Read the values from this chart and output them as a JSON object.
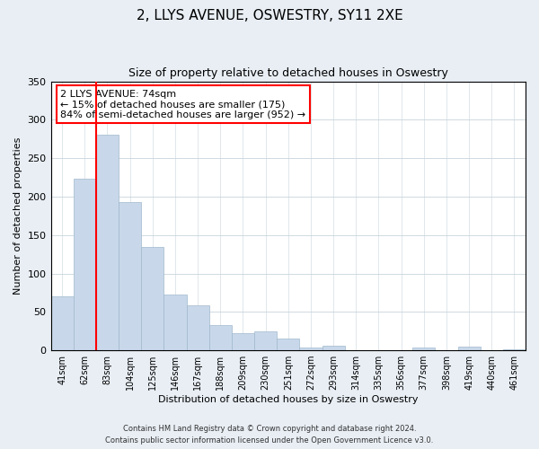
{
  "title": "2, LLYS AVENUE, OSWESTRY, SY11 2XE",
  "subtitle": "Size of property relative to detached houses in Oswestry",
  "xlabel": "Distribution of detached houses by size in Oswestry",
  "ylabel": "Number of detached properties",
  "bar_color": "#c8d8ea",
  "bar_edge_color": "#a0b8cc",
  "categories": [
    "41sqm",
    "62sqm",
    "83sqm",
    "104sqm",
    "125sqm",
    "146sqm",
    "167sqm",
    "188sqm",
    "209sqm",
    "230sqm",
    "251sqm",
    "272sqm",
    "293sqm",
    "314sqm",
    "335sqm",
    "356sqm",
    "377sqm",
    "398sqm",
    "419sqm",
    "440sqm",
    "461sqm"
  ],
  "values": [
    70,
    223,
    280,
    193,
    135,
    72,
    58,
    33,
    22,
    25,
    15,
    4,
    6,
    0,
    0,
    0,
    4,
    0,
    5,
    0,
    1
  ],
  "ylim": [
    0,
    350
  ],
  "yticks": [
    0,
    50,
    100,
    150,
    200,
    250,
    300,
    350
  ],
  "red_line_x": 1.5,
  "annotation_title": "2 LLYS AVENUE: 74sqm",
  "annotation_line1": "← 15% of detached houses are smaller (175)",
  "annotation_line2": "84% of semi-detached houses are larger (952) →",
  "footer_line1": "Contains HM Land Registry data © Crown copyright and database right 2024.",
  "footer_line2": "Contains public sector information licensed under the Open Government Licence v3.0.",
  "background_color": "#e8eef4",
  "plot_bg_color": "#ffffff",
  "title_fontsize": 11,
  "subtitle_fontsize": 9,
  "axis_label_fontsize": 8,
  "tick_fontsize": 7,
  "footer_fontsize": 6
}
